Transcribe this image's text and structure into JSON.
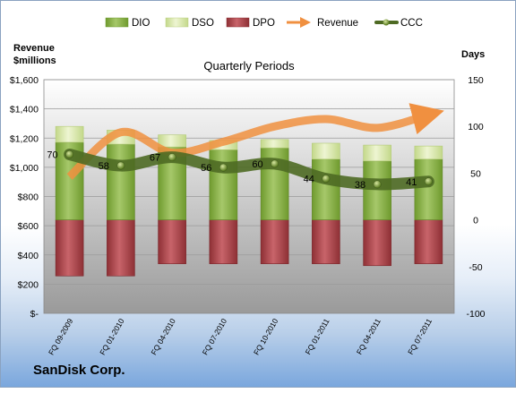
{
  "chart_data": {
    "type": "bar",
    "title": "Quarterly Periods",
    "company": "SanDisk Corp.",
    "left_axis_label": [
      "Revenue",
      "$millions"
    ],
    "right_axis_label": "Days",
    "left_ticks": [
      "$1,600",
      "$1,400",
      "$1,200",
      "$1,000",
      "$800",
      "$600",
      "$400",
      "$200",
      "$-"
    ],
    "right_ticks": [
      "150",
      "100",
      "50",
      "0",
      "-50",
      "-100"
    ],
    "ylim_left": [
      0,
      1600
    ],
    "ylim_right": [
      -100,
      150
    ],
    "categories": [
      "FQ 09-2009",
      "FQ 01-2010",
      "FQ 04-2010",
      "FQ 07-2010",
      "FQ 10-2010",
      "FQ 01-2011",
      "FQ 04-2011",
      "FQ 07-2011"
    ],
    "legend": [
      "DIO",
      "DSO",
      "DPO",
      "Revenue",
      "CCC"
    ],
    "series": [
      {
        "name": "DIO",
        "axis": "right",
        "values": [
          83,
          81,
          78,
          75,
          77,
          65,
          63,
          65
        ]
      },
      {
        "name": "DSO",
        "axis": "right",
        "values": [
          17,
          15,
          13,
          10,
          9,
          17,
          17,
          14
        ]
      },
      {
        "name": "DPO",
        "axis": "right",
        "values": [
          -60,
          -60,
          -47,
          -47,
          -47,
          -47,
          -49,
          -47
        ]
      },
      {
        "name": "Revenue",
        "axis": "left",
        "values": [
          935,
          1240,
          1100,
          1175,
          1280,
          1330,
          1270,
          1360
        ]
      },
      {
        "name": "CCC",
        "axis": "right",
        "values": [
          70,
          58,
          67,
          56,
          60,
          44,
          38,
          41
        ],
        "labels": [
          "70",
          "58",
          "67",
          "56",
          "60",
          "44",
          "38",
          "41"
        ]
      }
    ],
    "colors": {
      "DIO": "#8db04a",
      "DSO": "#d9e8a8",
      "DPO": "#b24a4f",
      "Revenue": "#f09040",
      "CCC": "#4e6a23"
    },
    "grid": true,
    "legend_position": "top"
  }
}
